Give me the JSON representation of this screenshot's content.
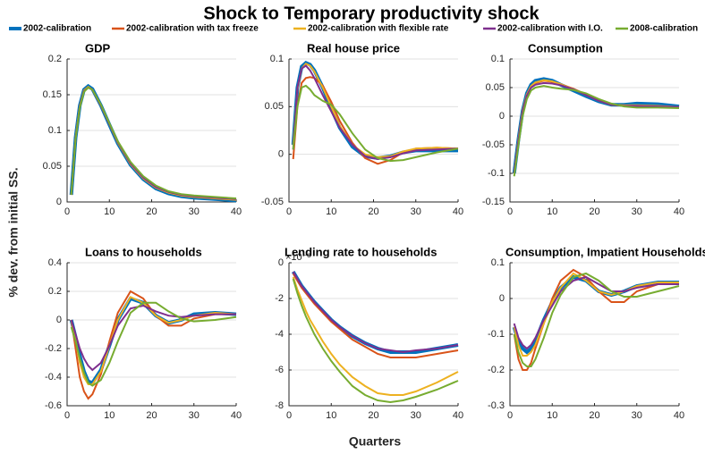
{
  "title": "Shock to Temporary productivity shock",
  "xlabel": "Quarters",
  "ylabel": "% dev. from initial SS.",
  "legend": [
    {
      "name": "2002-calibration",
      "color": "#0072bd"
    },
    {
      "name": "2002-calibration with tax freeze",
      "color": "#d95319"
    },
    {
      "name": "2002-calibration with flexible rate",
      "color": "#edb120"
    },
    {
      "name": "2002-calibration with I.O.",
      "color": "#7e2f8e"
    },
    {
      "name": "2008-calibration",
      "color": "#77ac30"
    }
  ],
  "chart_data": [
    {
      "type": "line",
      "title": "GDP",
      "x": [
        1,
        2,
        3,
        4,
        5,
        6,
        8,
        10,
        12,
        15,
        18,
        21,
        24,
        27,
        30,
        35,
        40
      ],
      "xlim": [
        0,
        40
      ],
      "xticks": [
        0,
        10,
        20,
        30,
        40
      ],
      "ylim": [
        0,
        0.2
      ],
      "yticks": [
        0,
        0.05,
        0.1,
        0.15,
        0.2
      ],
      "series": [
        {
          "values": [
            0.01,
            0.09,
            0.135,
            0.157,
            0.162,
            0.158,
            0.135,
            0.108,
            0.082,
            0.052,
            0.032,
            0.019,
            0.012,
            0.008,
            0.006,
            0.004,
            0.002
          ]
        },
        {
          "values": [
            0.01,
            0.09,
            0.134,
            0.156,
            0.161,
            0.157,
            0.135,
            0.109,
            0.083,
            0.053,
            0.033,
            0.02,
            0.013,
            0.009,
            0.007,
            0.005,
            0.003
          ]
        },
        {
          "values": [
            0.01,
            0.09,
            0.134,
            0.156,
            0.161,
            0.157,
            0.135,
            0.109,
            0.083,
            0.053,
            0.033,
            0.02,
            0.013,
            0.009,
            0.007,
            0.005,
            0.003
          ]
        },
        {
          "values": [
            0.01,
            0.089,
            0.133,
            0.155,
            0.16,
            0.157,
            0.135,
            0.109,
            0.084,
            0.054,
            0.034,
            0.021,
            0.014,
            0.01,
            0.008,
            0.006,
            0.004
          ]
        },
        {
          "values": [
            0.01,
            0.088,
            0.132,
            0.154,
            0.16,
            0.157,
            0.136,
            0.11,
            0.085,
            0.056,
            0.036,
            0.023,
            0.015,
            0.011,
            0.009,
            0.007,
            0.005
          ]
        }
      ]
    },
    {
      "type": "line",
      "title": "Real house price",
      "x": [
        1,
        2,
        3,
        4,
        5,
        6,
        8,
        10,
        12,
        15,
        18,
        21,
        24,
        27,
        30,
        35,
        40
      ],
      "xlim": [
        0,
        40
      ],
      "xticks": [
        0,
        10,
        20,
        30,
        40
      ],
      "ylim": [
        -0.05,
        0.1
      ],
      "yticks": [
        -0.05,
        0,
        0.05,
        0.1
      ],
      "series": [
        {
          "values": [
            0.01,
            0.07,
            0.092,
            0.096,
            0.094,
            0.088,
            0.07,
            0.048,
            0.028,
            0.008,
            -0.002,
            -0.004,
            -0.002,
            0.002,
            0.004,
            0.004,
            0.004
          ]
        },
        {
          "values": [
            -0.005,
            0.05,
            0.075,
            0.08,
            0.081,
            0.08,
            0.072,
            0.055,
            0.035,
            0.012,
            -0.004,
            -0.01,
            -0.006,
            0.002,
            0.006,
            0.007,
            0.006
          ]
        },
        {
          "values": [
            0.01,
            0.068,
            0.09,
            0.095,
            0.093,
            0.087,
            0.07,
            0.05,
            0.03,
            0.01,
            0,
            -0.003,
            -0.002,
            0.003,
            0.006,
            0.007,
            0.006
          ]
        },
        {
          "values": [
            0.005,
            0.07,
            0.09,
            0.093,
            0.088,
            0.08,
            0.062,
            0.045,
            0.028,
            0.01,
            -0.002,
            -0.005,
            -0.003,
            0.001,
            0.004,
            0.005,
            0.006
          ]
        },
        {
          "values": [
            0.005,
            0.05,
            0.07,
            0.072,
            0.068,
            0.062,
            0.056,
            0.052,
            0.042,
            0.022,
            0.005,
            -0.004,
            -0.007,
            -0.006,
            -0.003,
            0.002,
            0.006
          ]
        }
      ]
    },
    {
      "type": "line",
      "title": "Consumption",
      "x": [
        1,
        2,
        3,
        4,
        5,
        6,
        8,
        10,
        12,
        15,
        18,
        21,
        24,
        27,
        30,
        35,
        40
      ],
      "xlim": [
        0,
        40
      ],
      "xticks": [
        0,
        10,
        20,
        30,
        40
      ],
      "ylim": [
        -0.15,
        0.1
      ],
      "yticks": [
        -0.15,
        -0.1,
        -0.05,
        0,
        0.05,
        0.1
      ],
      "series": [
        {
          "values": [
            -0.1,
            -0.04,
            0.01,
            0.04,
            0.055,
            0.062,
            0.065,
            0.062,
            0.055,
            0.045,
            0.035,
            0.026,
            0.02,
            0.02,
            0.022,
            0.021,
            0.017
          ]
        },
        {
          "values": [
            -0.1,
            -0.04,
            0.01,
            0.038,
            0.052,
            0.058,
            0.062,
            0.06,
            0.056,
            0.048,
            0.038,
            0.028,
            0.02,
            0.018,
            0.018,
            0.017,
            0.016
          ]
        },
        {
          "values": [
            -0.1,
            -0.04,
            0.01,
            0.038,
            0.053,
            0.059,
            0.063,
            0.061,
            0.056,
            0.047,
            0.037,
            0.027,
            0.02,
            0.019,
            0.019,
            0.018,
            0.016
          ]
        },
        {
          "values": [
            -0.1,
            -0.042,
            0.008,
            0.036,
            0.05,
            0.055,
            0.058,
            0.057,
            0.054,
            0.047,
            0.037,
            0.027,
            0.02,
            0.018,
            0.018,
            0.017,
            0.016
          ]
        },
        {
          "values": [
            -0.105,
            -0.05,
            0,
            0.03,
            0.045,
            0.05,
            0.053,
            0.05,
            0.048,
            0.046,
            0.04,
            0.03,
            0.022,
            0.017,
            0.015,
            0.015,
            0.014
          ]
        }
      ]
    },
    {
      "type": "line",
      "title": "Loans to households",
      "x": [
        1,
        2,
        3,
        4,
        5,
        6,
        8,
        10,
        12,
        15,
        18,
        21,
        24,
        27,
        30,
        35,
        40
      ],
      "xlim": [
        0,
        40
      ],
      "xticks": [
        0,
        10,
        20,
        30,
        40
      ],
      "ylim": [
        -0.6,
        0.4
      ],
      "yticks": [
        -0.6,
        -0.4,
        -0.2,
        0,
        0.2,
        0.4
      ],
      "series": [
        {
          "values": [
            0,
            -0.12,
            -0.25,
            -0.36,
            -0.43,
            -0.44,
            -0.35,
            -0.18,
            0,
            0.15,
            0.12,
            0.03,
            -0.02,
            0,
            0.04,
            0.05,
            0.04
          ]
        },
        {
          "values": [
            0,
            -0.2,
            -0.4,
            -0.5,
            -0.55,
            -0.52,
            -0.38,
            -0.15,
            0.05,
            0.2,
            0.15,
            0.03,
            -0.04,
            -0.04,
            0.01,
            0.04,
            0.04
          ]
        },
        {
          "values": [
            0,
            -0.14,
            -0.3,
            -0.4,
            -0.45,
            -0.45,
            -0.36,
            -0.18,
            0,
            0.16,
            0.12,
            0.03,
            -0.02,
            0,
            0.03,
            0.05,
            0.04
          ]
        },
        {
          "values": [
            0,
            -0.1,
            -0.2,
            -0.27,
            -0.32,
            -0.35,
            -0.3,
            -0.18,
            -0.04,
            0.08,
            0.1,
            0.06,
            0.03,
            0.02,
            0.03,
            0.04,
            0.04
          ]
        },
        {
          "values": [
            -0.05,
            -0.15,
            -0.27,
            -0.37,
            -0.44,
            -0.46,
            -0.42,
            -0.3,
            -0.15,
            0.05,
            0.12,
            0.12,
            0.06,
            0.01,
            -0.01,
            0,
            0.02
          ]
        }
      ]
    },
    {
      "type": "line",
      "title": "Lending rate to households",
      "y_multiplier_label": "×10⁻³",
      "x": [
        1,
        2,
        3,
        4,
        5,
        6,
        8,
        10,
        12,
        15,
        18,
        21,
        24,
        27,
        30,
        35,
        40
      ],
      "xlim": [
        0,
        40
      ],
      "xticks": [
        0,
        10,
        20,
        30,
        40
      ],
      "ylim": [
        -8,
        0
      ],
      "yticks": [
        -8,
        -6,
        -4,
        -2,
        0
      ],
      "series": [
        {
          "values": [
            -0.5,
            -0.9,
            -1.3,
            -1.6,
            -1.9,
            -2.2,
            -2.7,
            -3.2,
            -3.6,
            -4.1,
            -4.5,
            -4.8,
            -5.0,
            -5.0,
            -5.0,
            -4.8,
            -4.6
          ]
        },
        {
          "values": [
            -0.6,
            -1.0,
            -1.4,
            -1.7,
            -2.0,
            -2.3,
            -2.8,
            -3.3,
            -3.7,
            -4.3,
            -4.7,
            -5.1,
            -5.3,
            -5.3,
            -5.3,
            -5.1,
            -4.9
          ]
        },
        {
          "values": [
            -0.8,
            -1.5,
            -2.1,
            -2.7,
            -3.2,
            -3.6,
            -4.4,
            -5.1,
            -5.7,
            -6.4,
            -6.9,
            -7.3,
            -7.4,
            -7.4,
            -7.2,
            -6.7,
            -6.1
          ]
        },
        {
          "values": [
            -0.5,
            -0.9,
            -1.3,
            -1.6,
            -1.9,
            -2.2,
            -2.7,
            -3.2,
            -3.6,
            -4.1,
            -4.5,
            -4.8,
            -4.9,
            -5.0,
            -4.9,
            -4.8,
            -4.6
          ]
        },
        {
          "values": [
            -0.9,
            -1.7,
            -2.4,
            -3.0,
            -3.5,
            -4.0,
            -4.8,
            -5.5,
            -6.1,
            -6.9,
            -7.4,
            -7.7,
            -7.8,
            -7.7,
            -7.5,
            -7.1,
            -6.6
          ]
        }
      ]
    },
    {
      "type": "line",
      "title": "Consumption, Impatient Households",
      "x": [
        1,
        2,
        3,
        4,
        5,
        6,
        8,
        10,
        12,
        15,
        18,
        21,
        24,
        27,
        30,
        35,
        40
      ],
      "xlim": [
        0,
        40
      ],
      "xticks": [
        0,
        10,
        20,
        30,
        40
      ],
      "ylim": [
        -0.3,
        0.1
      ],
      "yticks": [
        -0.3,
        -0.2,
        -0.1,
        0,
        0.1
      ],
      "series": [
        {
          "values": [
            -0.08,
            -0.12,
            -0.14,
            -0.15,
            -0.14,
            -0.12,
            -0.06,
            -0.01,
            0.03,
            0.06,
            0.05,
            0.02,
            0.01,
            0.02,
            0.035,
            0.045,
            0.045
          ]
        },
        {
          "values": [
            -0.1,
            -0.17,
            -0.2,
            -0.2,
            -0.18,
            -0.14,
            -0.07,
            0,
            0.05,
            0.08,
            0.06,
            0.02,
            -0.01,
            -0.01,
            0.02,
            0.04,
            0.04
          ]
        },
        {
          "values": [
            -0.08,
            -0.13,
            -0.16,
            -0.16,
            -0.15,
            -0.13,
            -0.07,
            -0.01,
            0.03,
            0.07,
            0.05,
            0.02,
            0.01,
            0.02,
            0.035,
            0.045,
            0.045
          ]
        },
        {
          "values": [
            -0.07,
            -0.11,
            -0.13,
            -0.14,
            -0.13,
            -0.11,
            -0.06,
            -0.02,
            0.02,
            0.05,
            0.06,
            0.04,
            0.02,
            0.02,
            0.03,
            0.04,
            0.04
          ]
        },
        {
          "values": [
            -0.1,
            -0.15,
            -0.18,
            -0.19,
            -0.19,
            -0.17,
            -0.11,
            -0.04,
            0.01,
            0.06,
            0.07,
            0.05,
            0.02,
            0.005,
            0.005,
            0.02,
            0.035
          ]
        }
      ]
    }
  ]
}
